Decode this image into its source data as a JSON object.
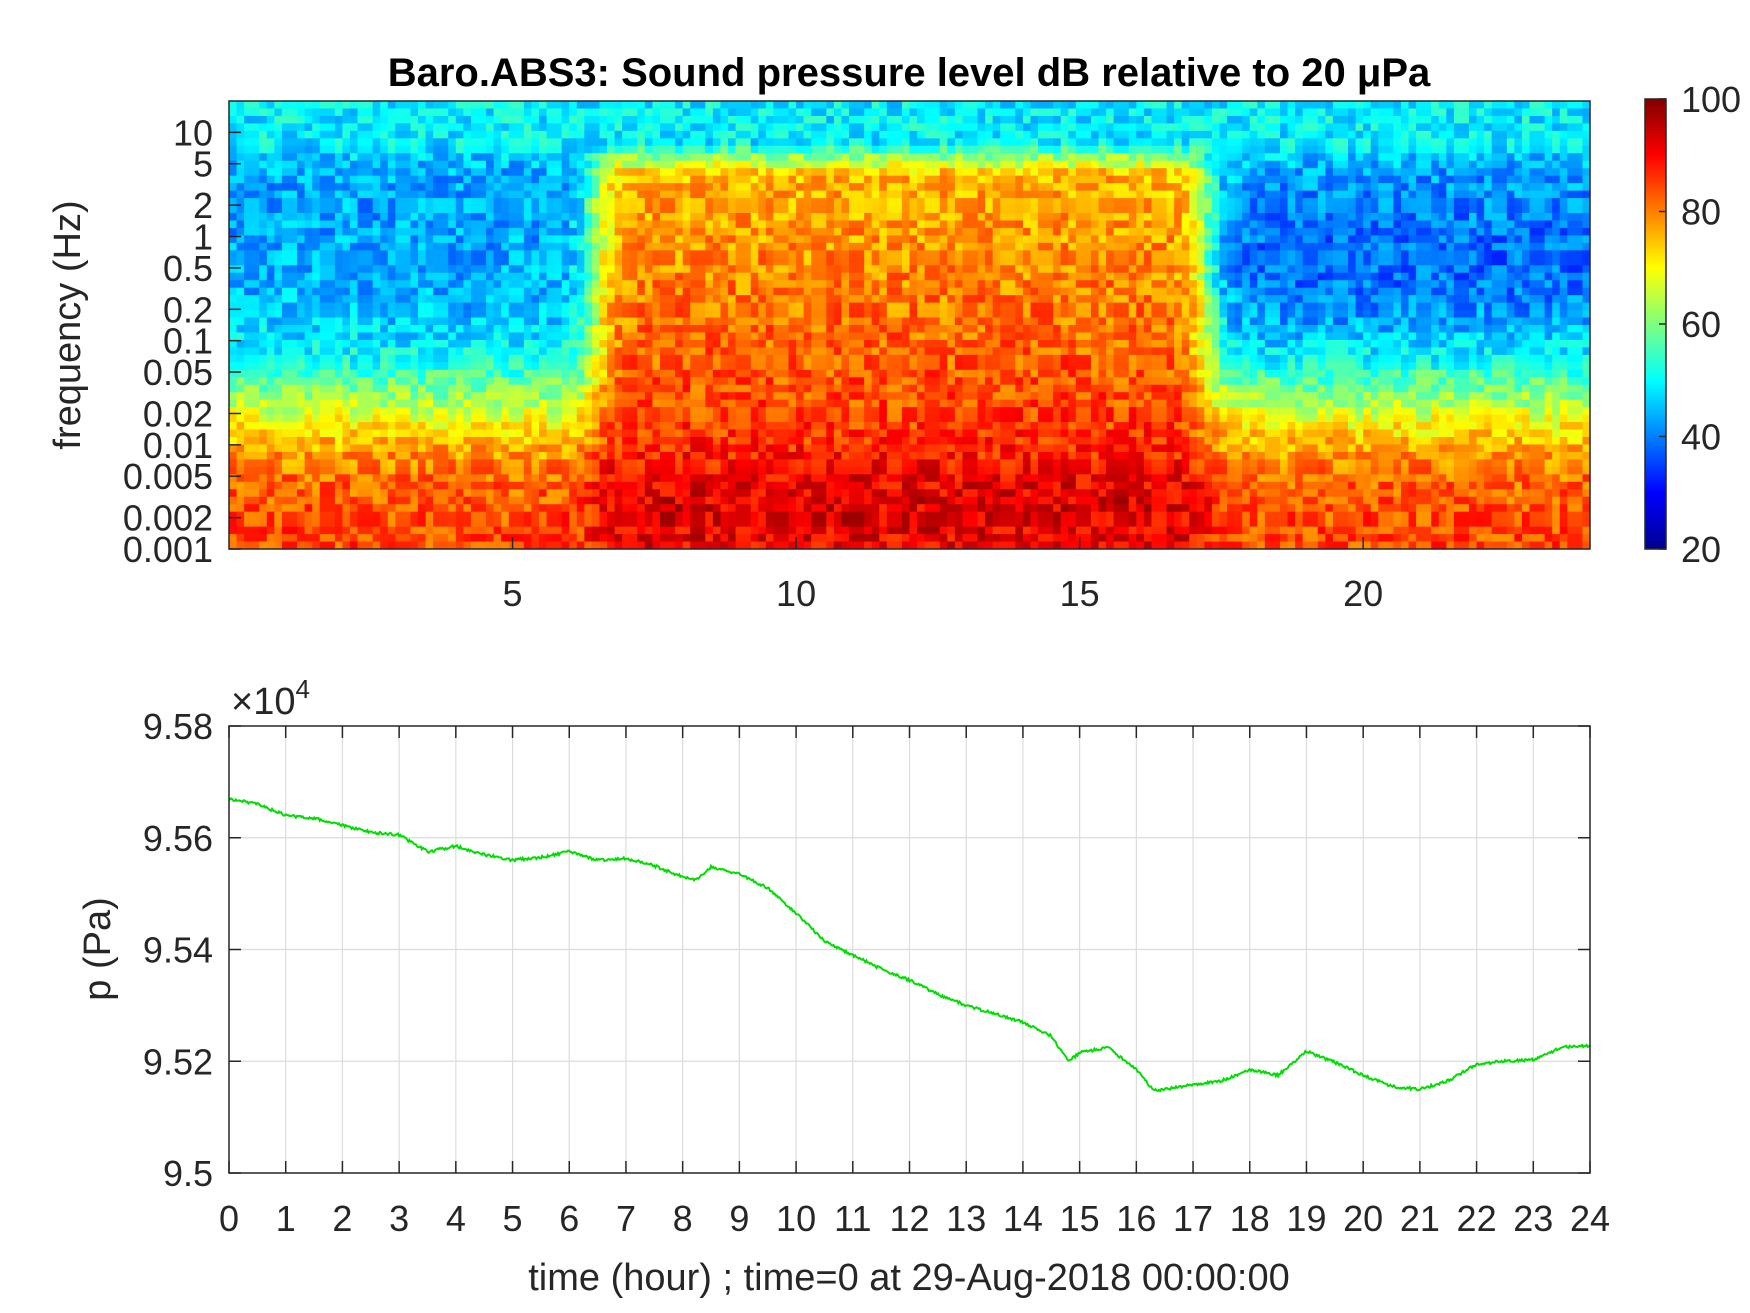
{
  "chart_data": [
    {
      "type": "heatmap",
      "title": "Baro.ABS3: Sound pressure level dB relative to 20 μPa",
      "xlabel": "",
      "ylabel": "frequency (Hz)",
      "xlim": [
        0,
        24
      ],
      "xticks": [
        5,
        10,
        15,
        20
      ],
      "y_scale": "log",
      "ylim": [
        0.001,
        20
      ],
      "yticks": [
        10,
        5,
        2,
        1,
        0.5,
        0.2,
        0.1,
        0.05,
        0.02,
        0.01,
        0.005,
        0.002,
        0.001
      ],
      "ytick_labels": [
        "10",
        "5",
        "2",
        "1",
        "0.5",
        "0.2",
        "0.1",
        "0.05",
        "0.02",
        "0.01",
        "0.005",
        "0.002",
        "0.001"
      ],
      "colormap": "jet",
      "colorbar": {
        "range": [
          20,
          100
        ],
        "ticks": [
          20,
          40,
          60,
          80,
          100
        ],
        "tick_labels": [
          "20",
          "40",
          "60",
          "80",
          "100"
        ]
      },
      "regions": [
        {
          "time_range": [
            0,
            6.4
          ],
          "description": "quiet: 40-55 dB above 0.05 Hz, 80-95 dB below 0.02 Hz"
        },
        {
          "time_range": [
            6.4,
            17.2
          ],
          "description": "loud broadband: 65-90 dB up to 10 Hz"
        },
        {
          "time_range": [
            17.2,
            24
          ],
          "description": "quiet: 30-45 dB at 0.1-2 Hz, 70-90 dB below 0.01 Hz"
        }
      ],
      "grid": false
    },
    {
      "type": "line",
      "title": "",
      "xlabel": "time (hour) ; time=0 at 29-Aug-2018 00:00:00",
      "ylabel": "p (Pa)",
      "y_exponent_label": "×10",
      "y_exponent": "4",
      "xlim": [
        0,
        24
      ],
      "ylim": [
        95000,
        95800
      ],
      "xticks": [
        0,
        1,
        2,
        3,
        4,
        5,
        6,
        7,
        8,
        9,
        10,
        11,
        12,
        13,
        14,
        15,
        16,
        17,
        18,
        19,
        20,
        21,
        22,
        23,
        24
      ],
      "yticks": [
        95000,
        95200,
        95400,
        95600,
        95800
      ],
      "ytick_labels": [
        "9.5",
        "9.52",
        "9.54",
        "9.56",
        "9.58"
      ],
      "grid": true,
      "series": [
        {
          "color": "#00dd00",
          "x": [
            0,
            0.5,
            1,
            1.5,
            2,
            2.5,
            3,
            3.5,
            4,
            4.5,
            5,
            5.5,
            6,
            6.5,
            7,
            7.5,
            8,
            8.25,
            8.5,
            9,
            9.5,
            10,
            10.5,
            11,
            11.5,
            12,
            12.5,
            13,
            13.5,
            14,
            14.5,
            14.8,
            15,
            15.5,
            16,
            16.3,
            16.5,
            17,
            17.5,
            18,
            18.5,
            19,
            19.5,
            20,
            20.5,
            21,
            21.5,
            22,
            22.5,
            23,
            23.5,
            24
          ],
          "y": [
            95670,
            95660,
            95640,
            95635,
            95622,
            95610,
            95605,
            95575,
            95585,
            95570,
            95560,
            95565,
            95575,
            95560,
            95563,
            95550,
            95530,
            95525,
            95548,
            95535,
            95510,
            95465,
            95415,
            95390,
            95365,
            95345,
            95320,
            95300,
            95285,
            95270,
            95245,
            95200,
            95215,
            95225,
            95185,
            95148,
            95150,
            95158,
            95165,
            95185,
            95175,
            95218,
            95198,
            95175,
            95155,
            95150,
            95165,
            95195,
            95200,
            95203,
            95225,
            95228
          ]
        }
      ]
    }
  ]
}
